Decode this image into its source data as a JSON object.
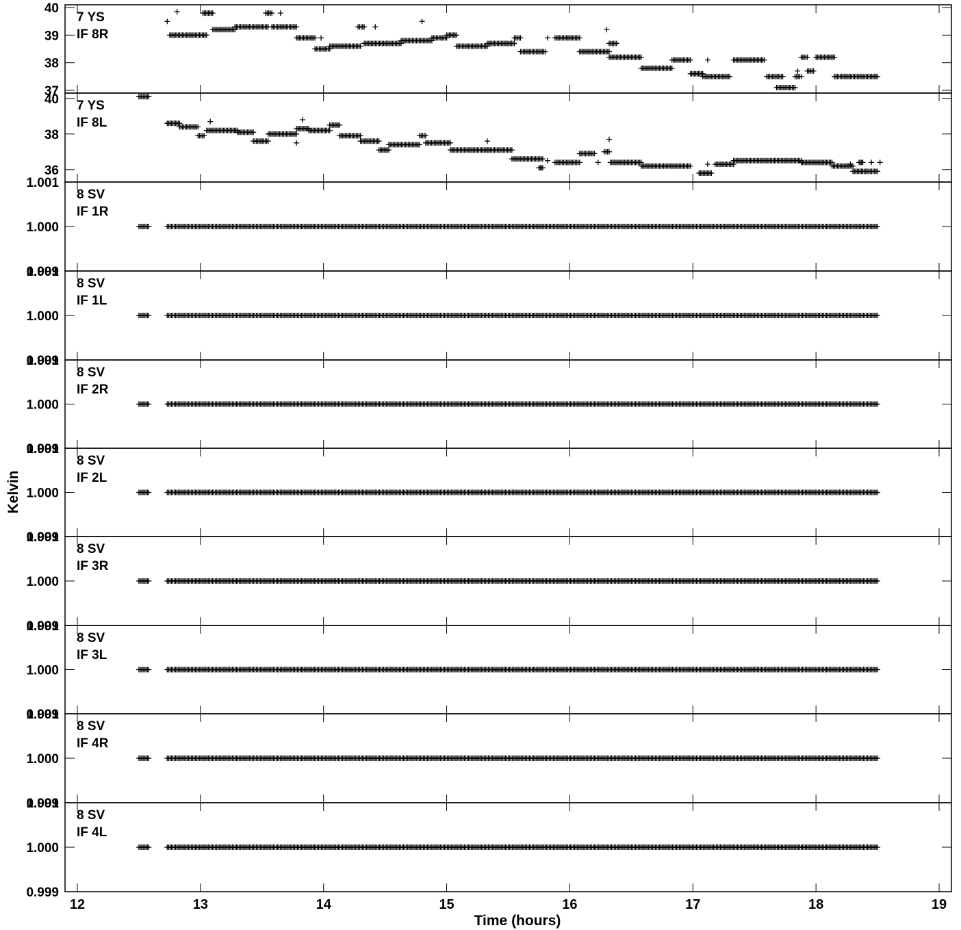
{
  "chart_data": {
    "type": "scatter",
    "xlabel": "Time (hours)",
    "ylabel": "Kelvin",
    "xlim": [
      11.9,
      19.1
    ],
    "xticks": [
      12,
      13,
      14,
      15,
      16,
      17,
      18,
      19
    ],
    "color": "#000000",
    "panels": [
      {
        "label1": "7 YS",
        "label2": "IF 8R",
        "ylim": [
          36.9,
          40.1
        ],
        "yticks": [
          37,
          38,
          39,
          40
        ],
        "ticklabels": [
          "37",
          "38",
          "39",
          "40"
        ],
        "segments": [
          [
            12.73,
            12.73,
            39.5
          ],
          [
            12.81,
            12.81,
            39.85
          ],
          [
            12.75,
            13.05,
            39.0
          ],
          [
            13.02,
            13.1,
            39.8
          ],
          [
            13.1,
            13.28,
            39.2
          ],
          [
            13.28,
            13.55,
            39.3
          ],
          [
            13.53,
            13.58,
            39.8
          ],
          [
            13.65,
            13.65,
            39.8
          ],
          [
            13.58,
            13.78,
            39.3
          ],
          [
            13.78,
            13.93,
            38.9
          ],
          [
            13.93,
            14.05,
            38.5
          ],
          [
            13.98,
            13.98,
            38.9
          ],
          [
            14.05,
            14.3,
            38.6
          ],
          [
            14.28,
            14.33,
            39.3
          ],
          [
            14.42,
            14.42,
            39.3
          ],
          [
            14.33,
            14.5,
            38.7
          ],
          [
            14.5,
            14.63,
            38.7
          ],
          [
            14.63,
            14.88,
            38.8
          ],
          [
            14.8,
            14.8,
            39.5
          ],
          [
            14.88,
            15.0,
            38.9
          ],
          [
            15.0,
            15.08,
            39.0
          ],
          [
            15.08,
            15.2,
            38.6
          ],
          [
            15.2,
            15.33,
            38.6
          ],
          [
            15.33,
            15.55,
            38.7
          ],
          [
            15.55,
            15.6,
            38.9
          ],
          [
            15.6,
            15.8,
            38.4
          ],
          [
            15.82,
            15.82,
            38.9
          ],
          [
            15.88,
            16.08,
            38.9
          ],
          [
            16.08,
            16.25,
            38.4
          ],
          [
            16.25,
            16.32,
            38.4
          ],
          [
            16.3,
            16.3,
            39.2
          ],
          [
            16.32,
            16.38,
            38.7
          ],
          [
            16.32,
            16.4,
            38.2
          ],
          [
            16.4,
            16.58,
            38.2
          ],
          [
            16.58,
            16.83,
            37.8
          ],
          [
            16.83,
            16.98,
            38.1
          ],
          [
            16.98,
            17.08,
            37.6
          ],
          [
            17.12,
            17.12,
            38.1
          ],
          [
            17.08,
            17.3,
            37.5
          ],
          [
            17.33,
            17.58,
            38.1
          ],
          [
            17.6,
            17.73,
            37.5
          ],
          [
            17.68,
            17.83,
            37.1
          ],
          [
            17.83,
            17.88,
            37.5
          ],
          [
            17.85,
            17.85,
            37.7
          ],
          [
            17.88,
            17.93,
            38.2
          ],
          [
            17.93,
            17.98,
            37.7
          ],
          [
            18.0,
            18.15,
            38.2
          ],
          [
            18.15,
            18.5,
            37.5
          ]
        ]
      },
      {
        "label1": "7 YS",
        "label2": "IF 8L",
        "ylim": [
          35.3,
          40.3
        ],
        "yticks": [
          36,
          38,
          40
        ],
        "ticklabels": [
          "36",
          "38",
          "40"
        ],
        "segments": [
          [
            12.5,
            12.58,
            40.1
          ],
          [
            12.73,
            12.83,
            38.6
          ],
          [
            12.83,
            12.98,
            38.4
          ],
          [
            12.98,
            13.03,
            37.9
          ],
          [
            13.08,
            13.08,
            38.7
          ],
          [
            13.05,
            13.3,
            38.2
          ],
          [
            13.3,
            13.43,
            38.1
          ],
          [
            13.43,
            13.55,
            37.6
          ],
          [
            13.55,
            13.78,
            38.0
          ],
          [
            13.78,
            13.78,
            37.5
          ],
          [
            13.78,
            13.88,
            38.3
          ],
          [
            13.83,
            13.83,
            38.8
          ],
          [
            13.88,
            14.05,
            38.2
          ],
          [
            14.05,
            14.13,
            38.5
          ],
          [
            14.13,
            14.3,
            37.9
          ],
          [
            14.3,
            14.45,
            37.6
          ],
          [
            14.45,
            14.53,
            37.1
          ],
          [
            14.53,
            14.78,
            37.4
          ],
          [
            14.78,
            14.83,
            37.9
          ],
          [
            14.83,
            15.03,
            37.5
          ],
          [
            15.03,
            15.33,
            37.1
          ],
          [
            15.33,
            15.33,
            37.6
          ],
          [
            15.33,
            15.53,
            37.1
          ],
          [
            15.53,
            15.78,
            36.6
          ],
          [
            15.75,
            15.78,
            36.1
          ],
          [
            15.82,
            15.82,
            36.5
          ],
          [
            15.88,
            16.08,
            36.4
          ],
          [
            16.08,
            16.2,
            36.9
          ],
          [
            16.23,
            16.23,
            36.4
          ],
          [
            16.28,
            16.32,
            37.0
          ],
          [
            16.32,
            16.32,
            37.7
          ],
          [
            16.33,
            16.58,
            36.4
          ],
          [
            16.58,
            16.98,
            36.2
          ],
          [
            17.05,
            17.15,
            35.8
          ],
          [
            17.12,
            17.12,
            36.3
          ],
          [
            17.18,
            17.33,
            36.3
          ],
          [
            17.33,
            17.88,
            36.5
          ],
          [
            17.88,
            18.13,
            36.4
          ],
          [
            18.13,
            18.3,
            36.2
          ],
          [
            18.28,
            18.28,
            36.3
          ],
          [
            18.3,
            18.38,
            35.9
          ],
          [
            18.35,
            18.38,
            36.4
          ],
          [
            18.38,
            18.5,
            35.9
          ],
          [
            18.45,
            18.45,
            36.4
          ],
          [
            18.52,
            18.52,
            36.4
          ]
        ]
      },
      {
        "label1": "8 SV",
        "label2": "IF 1R",
        "ylim": [
          0.999,
          1.001
        ],
        "yticks": [
          0.999,
          1.0,
          1.001
        ],
        "ticklabels": [
          "0.999",
          "1.000",
          "1.001"
        ],
        "segments": [
          [
            12.5,
            12.58,
            1.0
          ],
          [
            12.73,
            18.5,
            1.0
          ]
        ]
      },
      {
        "label1": "8 SV",
        "label2": "IF 1L",
        "ylim": [
          0.999,
          1.001
        ],
        "yticks": [
          0.999,
          1.0,
          1.001
        ],
        "ticklabels": [
          "0.999",
          "1.000",
          "1.001"
        ],
        "segments": [
          [
            12.5,
            12.58,
            1.0
          ],
          [
            12.73,
            18.5,
            1.0
          ]
        ]
      },
      {
        "label1": "8 SV",
        "label2": "IF 2R",
        "ylim": [
          0.999,
          1.001
        ],
        "yticks": [
          0.999,
          1.0,
          1.001
        ],
        "ticklabels": [
          "0.999",
          "1.000",
          "1.001"
        ],
        "segments": [
          [
            12.5,
            12.58,
            1.0
          ],
          [
            12.73,
            18.5,
            1.0
          ]
        ]
      },
      {
        "label1": "8 SV",
        "label2": "IF 2L",
        "ylim": [
          0.999,
          1.001
        ],
        "yticks": [
          0.999,
          1.0,
          1.001
        ],
        "ticklabels": [
          "0.999",
          "1.000",
          "1.001"
        ],
        "segments": [
          [
            12.5,
            12.58,
            1.0
          ],
          [
            12.73,
            18.5,
            1.0
          ]
        ]
      },
      {
        "label1": "8 SV",
        "label2": "IF 3R",
        "ylim": [
          0.999,
          1.001
        ],
        "yticks": [
          0.999,
          1.0,
          1.001
        ],
        "ticklabels": [
          "0.999",
          "1.000",
          "1.001"
        ],
        "segments": [
          [
            12.5,
            12.58,
            1.0
          ],
          [
            12.73,
            18.5,
            1.0
          ]
        ]
      },
      {
        "label1": "8 SV",
        "label2": "IF 3L",
        "ylim": [
          0.999,
          1.001
        ],
        "yticks": [
          0.999,
          1.0,
          1.001
        ],
        "ticklabels": [
          "0.999",
          "1.000",
          "1.001"
        ],
        "segments": [
          [
            12.5,
            12.58,
            1.0
          ],
          [
            12.73,
            18.5,
            1.0
          ]
        ]
      },
      {
        "label1": "8 SV",
        "label2": "IF 4R",
        "ylim": [
          0.999,
          1.001
        ],
        "yticks": [
          0.999,
          1.0,
          1.001
        ],
        "ticklabels": [
          "0.999",
          "1.000",
          "1.001"
        ],
        "segments": [
          [
            12.5,
            12.58,
            1.0
          ],
          [
            12.73,
            18.5,
            1.0
          ]
        ]
      },
      {
        "label1": "8 SV",
        "label2": "IF 4L",
        "ylim": [
          0.999,
          1.001
        ],
        "yticks": [
          0.999,
          1.0,
          1.001
        ],
        "ticklabels": [
          "0.999",
          "1.000",
          "1.001"
        ],
        "segments": [
          [
            12.5,
            12.58,
            1.0
          ],
          [
            12.73,
            18.5,
            1.0
          ]
        ]
      }
    ]
  }
}
